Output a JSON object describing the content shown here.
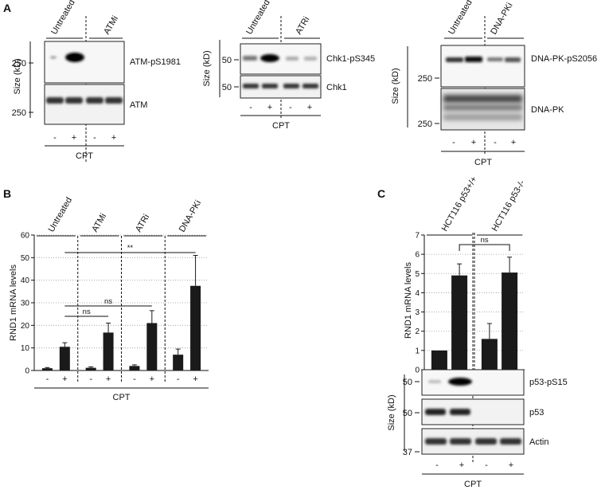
{
  "panels": {
    "A": "A",
    "B": "B",
    "C": "C"
  },
  "panel_a": {
    "atm": {
      "groups": [
        "Untreated",
        "ATMi"
      ],
      "size_axis": "Size (kD)",
      "blot_labels": [
        "ATM-pS1981",
        "ATM"
      ],
      "markers": [
        "250",
        "250"
      ],
      "cpt_signs": [
        "-",
        "+",
        "-",
        "+"
      ],
      "cpt_label": "CPT"
    },
    "chk1": {
      "groups": [
        "Untreated",
        "ATRi"
      ],
      "size_axis": "Size (kD)",
      "blot_labels": [
        "Chk1-pS345",
        "Chk1"
      ],
      "markers": [
        "50",
        "50"
      ],
      "cpt_signs": [
        "-",
        "+",
        "-",
        "+"
      ],
      "cpt_label": "CPT"
    },
    "dnapk": {
      "groups": [
        "Untreated",
        "DNA-PKi"
      ],
      "size_axis": "Size (kD)",
      "blot_labels": [
        "DNA-PK-pS2056",
        "DNA-PK"
      ],
      "markers": [
        "250",
        "250"
      ],
      "cpt_signs": [
        "-",
        "+",
        "-",
        "+"
      ],
      "cpt_label": "CPT"
    }
  },
  "panel_c_blots": {
    "size_axis": "Size (kD)",
    "blot_labels": [
      "p53-pS15",
      "p53",
      "Actin"
    ],
    "markers": [
      "50",
      "50",
      "37"
    ],
    "cpt_signs": [
      "-",
      "+",
      "-",
      "+"
    ],
    "cpt_label": "CPT"
  },
  "chart_data": [
    {
      "type": "bar",
      "panel": "B",
      "groups": [
        "Untreated",
        "ATMi",
        "ATRi",
        "DNA-PKi"
      ],
      "categories": [
        "-",
        "+",
        "-",
        "+",
        "-",
        "+",
        "-",
        "+"
      ],
      "values": [
        1.0,
        10.5,
        1.2,
        16.8,
        2.0,
        21.0,
        7.0,
        37.5
      ],
      "errors": [
        0.3,
        1.8,
        0.4,
        4.2,
        0.5,
        5.5,
        2.5,
        13.5
      ],
      "ylabel": "RND1 mRNA levels",
      "xlabel": "CPT",
      "ylim": [
        0,
        60
      ],
      "yticks": [
        "0",
        "10",
        "20",
        "30",
        "40",
        "50",
        "60"
      ],
      "grid": "horizontal dotted",
      "significance": [
        {
          "from": 1,
          "to": 3,
          "label": "ns"
        },
        {
          "from": 1,
          "to": 5,
          "label": "ns"
        },
        {
          "from": 1,
          "to": 7,
          "label": "**"
        }
      ]
    },
    {
      "type": "bar",
      "panel": "C",
      "groups": [
        "HCT116 p53+/+",
        "HCT116 p53-/-"
      ],
      "categories": [
        "-",
        "+",
        "-",
        "+"
      ],
      "values": [
        1.0,
        4.9,
        1.6,
        5.05
      ],
      "errors": [
        0.0,
        0.6,
        0.8,
        0.8
      ],
      "ylabel": "RND1 mRNA levels",
      "xlabel": "CPT",
      "ylim": [
        0,
        7
      ],
      "yticks": [
        "0",
        "1",
        "2",
        "3",
        "4",
        "5",
        "6",
        "7"
      ],
      "grid": "horizontal dotted",
      "significance": [
        {
          "from": 1,
          "to": 3,
          "label": "ns"
        }
      ]
    }
  ]
}
